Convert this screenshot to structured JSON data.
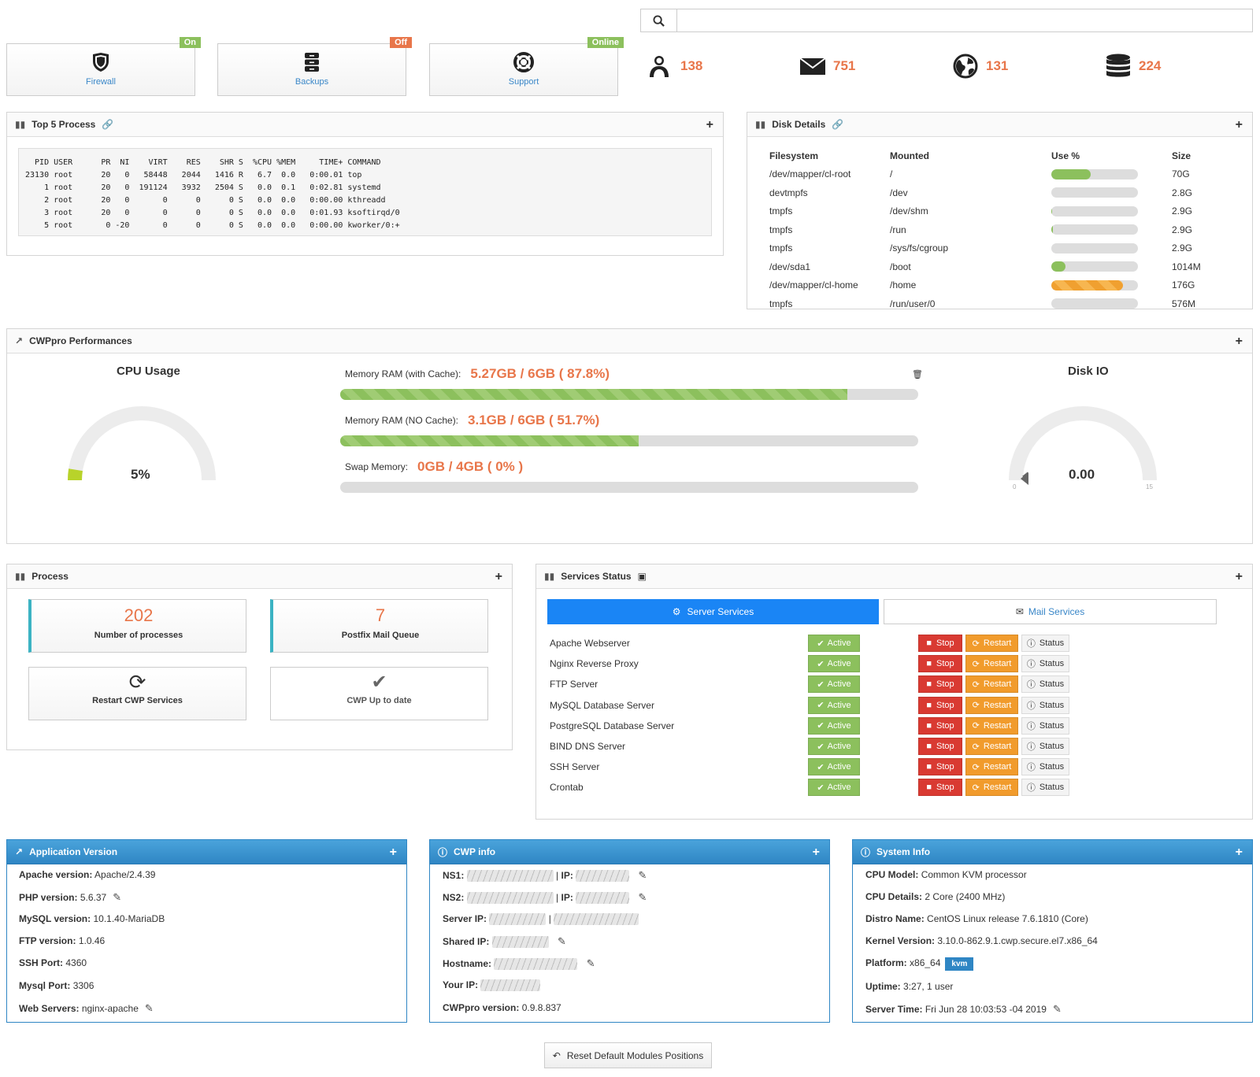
{
  "colors": {
    "accent_orange": "#e8764a",
    "green": "#8cc05d",
    "blue": "#1a85f5",
    "badge_on": "#8cc05d",
    "badge_off": "#e8764a"
  },
  "top_boxes": [
    {
      "label": "Firewall",
      "badge": "On",
      "icon": "shield-icon"
    },
    {
      "label": "Backups",
      "badge": "Off",
      "icon": "database-icon"
    },
    {
      "label": "Support",
      "badge": "Online",
      "icon": "lifebuoy-icon"
    }
  ],
  "stats": [
    {
      "icon": "users-icon",
      "value": "138"
    },
    {
      "icon": "envelope-icon",
      "value": "751"
    },
    {
      "icon": "globe-icon",
      "value": "131"
    },
    {
      "icon": "database-icon",
      "value": "224"
    }
  ],
  "search": {
    "placeholder": ""
  },
  "top_process": {
    "title": "Top 5 Process",
    "header": "  PID USER      PR  NI    VIRT    RES    SHR S  %CPU %MEM     TIME+ COMMAND",
    "rows": [
      "23130 root      20   0   58448   2044   1416 R   6.7  0.0   0:00.01 top",
      "    1 root      20   0  191124   3932   2504 S   0.0  0.1   0:02.81 systemd",
      "    2 root      20   0       0      0      0 S   0.0  0.0   0:00.00 kthreadd",
      "    3 root      20   0       0      0      0 S   0.0  0.0   0:01.93 ksoftirqd/0",
      "    5 root       0 -20       0      0      0 S   0.0  0.0   0:00.00 kworker/0:+"
    ]
  },
  "disk": {
    "title": "Disk Details",
    "columns": [
      "Filesystem",
      "Mounted",
      "Use %",
      "Size"
    ],
    "rows": [
      {
        "fs": "/dev/mapper/cl-root",
        "mount": "/",
        "use": 45,
        "size": "70G"
      },
      {
        "fs": "devtmpfs",
        "mount": "/dev",
        "use": 0,
        "size": "2.8G"
      },
      {
        "fs": "tmpfs",
        "mount": "/dev/shm",
        "use": 1,
        "size": "2.9G"
      },
      {
        "fs": "tmpfs",
        "mount": "/run",
        "use": 2,
        "size": "2.9G"
      },
      {
        "fs": "tmpfs",
        "mount": "/sys/fs/cgroup",
        "use": 0,
        "size": "2.9G"
      },
      {
        "fs": "/dev/sda1",
        "mount": "/boot",
        "use": 16,
        "size": "1014M"
      },
      {
        "fs": "/dev/mapper/cl-home",
        "mount": "/home",
        "use": 83,
        "size": "176G"
      },
      {
        "fs": "tmpfs",
        "mount": "/run/user/0",
        "use": 0,
        "size": "576M"
      }
    ]
  },
  "performance": {
    "title": "CWPpro Performances",
    "cpu_title": "CPU Usage",
    "cpu_value": "5%",
    "cpu_fraction": 0.05,
    "mem_cache_label": "Memory RAM (with Cache):",
    "mem_cache_value": "5.27GB / 6GB ( 87.8%)",
    "mem_cache_pct": 87.8,
    "mem_nocache_label": "Memory RAM (NO Cache):",
    "mem_nocache_value": "3.1GB / 6GB ( 51.7%)",
    "mem_nocache_pct": 51.7,
    "swap_label": "Swap Memory:",
    "swap_value": "0GB / 4GB ( 0% )",
    "swap_pct": 0,
    "disk_io_title": "Disk IO",
    "disk_io_value": "0.00",
    "disk_io_min": "0",
    "disk_io_max": "15"
  },
  "process": {
    "title": "Process",
    "num_processes": "202",
    "num_processes_label": "Number of processes",
    "mail_queue": "7",
    "mail_queue_label": "Postfix Mail Queue",
    "restart_label": "Restart CWP Services",
    "uptodate_label": "CWP Up to date"
  },
  "services": {
    "title": "Services Status",
    "tab_server": "Server Services",
    "tab_mail": "Mail Services",
    "active_label": "Active",
    "stop_label": "Stop",
    "restart_label": "Restart",
    "status_label": "Status",
    "items": [
      "Apache Webserver",
      "Nginx Reverse Proxy",
      "FTP Server",
      "MySQL Database Server",
      "PostgreSQL Database Server",
      "BIND DNS Server",
      "SSH Server",
      "Crontab"
    ]
  },
  "app_version": {
    "title": "Application Version",
    "rows": [
      {
        "k": "Apache version:",
        "v": "Apache/2.4.39"
      },
      {
        "k": "PHP version:",
        "v": "5.6.37"
      },
      {
        "k": "MySQL version:",
        "v": "10.1.40-MariaDB"
      },
      {
        "k": "FTP version:",
        "v": "1.0.46"
      },
      {
        "k": "SSH Port:",
        "v": "4360"
      },
      {
        "k": "Mysql Port:",
        "v": "3306"
      },
      {
        "k": "Web Servers:",
        "v": "nginx-apache"
      }
    ]
  },
  "cwp_info": {
    "title": "CWP info",
    "ns1": "NS1:",
    "ns2": "NS2:",
    "ip": "IP:",
    "sep": "|",
    "server_ip": "Server IP:",
    "shared_ip": "Shared IP:",
    "hostname": "Hostname:",
    "your_ip": "Your IP:",
    "version_label": "CWPpro version:",
    "version": "0.9.8.837"
  },
  "system_info": {
    "title": "System Info",
    "rows": [
      {
        "k": "CPU Model:",
        "v": "Common KVM processor"
      },
      {
        "k": "CPU Details:",
        "v": "2 Core (2400 MHz)"
      },
      {
        "k": "Distro Name:",
        "v": "CentOS Linux release 7.6.1810 (Core)"
      },
      {
        "k": "Kernel Version:",
        "v": "3.10.0-862.9.1.cwp.secure.el7.x86_64"
      },
      {
        "k": "Platform:",
        "v": "x86_64"
      },
      {
        "k": "Uptime:",
        "v": "3:27, 1 user"
      },
      {
        "k": "Server Time:",
        "v": "Fri Jun 28 10:03:53 -04 2019"
      }
    ],
    "platform_badge": "kvm"
  },
  "reset_button": "Reset Default Modules Positions"
}
